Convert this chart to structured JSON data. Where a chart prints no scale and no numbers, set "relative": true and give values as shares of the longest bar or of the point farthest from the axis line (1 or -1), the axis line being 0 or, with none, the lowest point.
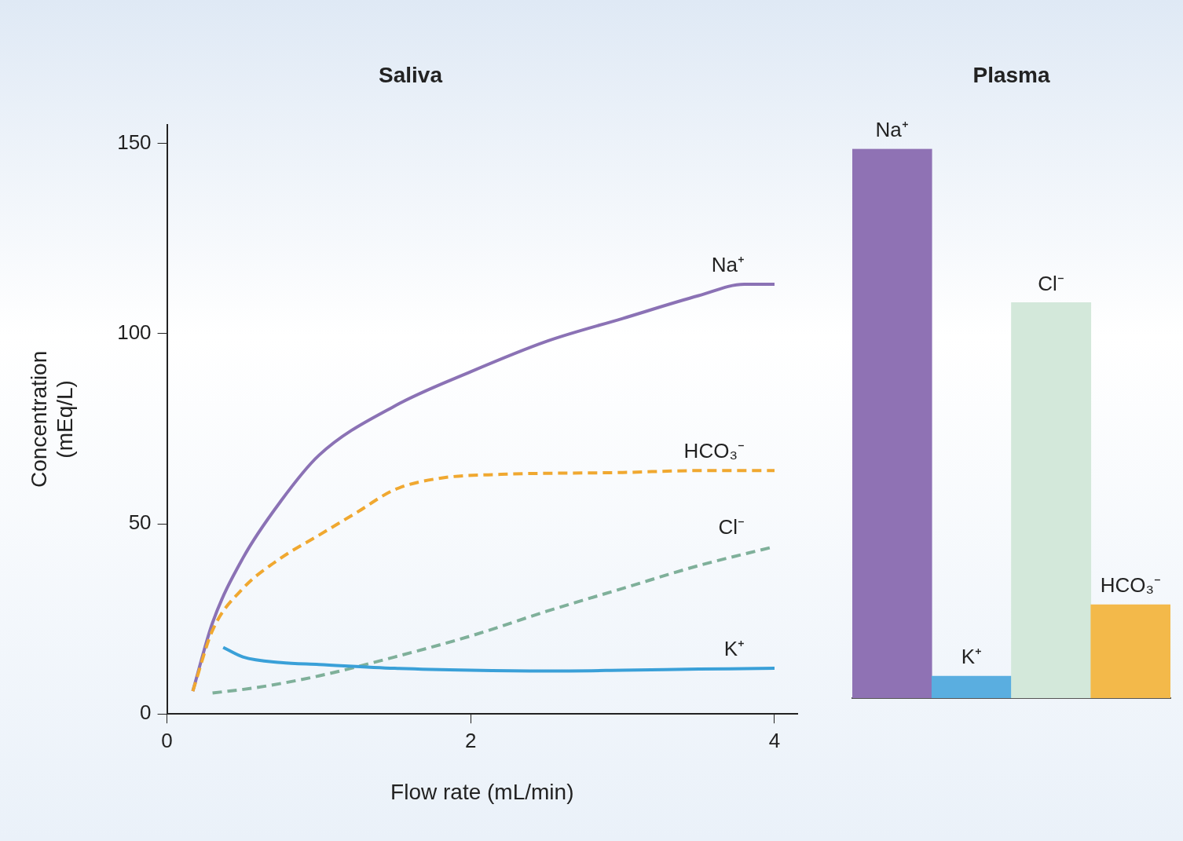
{
  "chart_data": [
    {
      "type": "line",
      "title": "Saliva",
      "xlabel": "Flow rate (mL/min)",
      "ylabel": "Concentration\n(mEq/L)",
      "xlim": [
        0,
        4.15
      ],
      "xticks": [
        0,
        2,
        4
      ],
      "ylim": [
        0,
        155
      ],
      "yticks": [
        0,
        50,
        100,
        150
      ],
      "grid": false,
      "legend": false,
      "marker": "none",
      "series": [
        {
          "name": "Na⁺",
          "color": "#8b72b5",
          "line_style": "solid",
          "x": [
            0.17,
            0.3,
            0.5,
            0.75,
            1,
            1.5,
            2,
            2.5,
            3,
            3.5,
            3.8,
            4
          ],
          "values": [
            6,
            24,
            41,
            56,
            68,
            81,
            90,
            98,
            104,
            110,
            113,
            113
          ]
        },
        {
          "name": "HCO₃⁻",
          "color": "#f0a830",
          "line_style": "dashed",
          "x": [
            0.17,
            0.3,
            0.5,
            0.75,
            1,
            1.25,
            1.5,
            1.8,
            2.2,
            3,
            3.5,
            4
          ],
          "values": [
            6,
            22,
            33,
            41,
            47,
            53,
            59,
            62,
            63,
            63.5,
            64,
            64
          ]
        },
        {
          "name": "Cl⁻",
          "color": "#7fb09a",
          "line_style": "dashed",
          "x": [
            0.3,
            0.6,
            1,
            1.5,
            2,
            2.5,
            3,
            3.5,
            4
          ],
          "values": [
            5.5,
            7,
            10,
            15,
            20.5,
            27,
            33,
            39,
            44
          ]
        },
        {
          "name": "K⁺",
          "color": "#3aa0d8",
          "line_style": "solid",
          "x": [
            0.37,
            0.5,
            0.75,
            1,
            1.5,
            2,
            2.5,
            3,
            3.5,
            4
          ],
          "values": [
            17.5,
            15,
            13.5,
            13,
            12,
            11.5,
            11.3,
            11.5,
            11.8,
            12
          ]
        }
      ]
    },
    {
      "type": "bar",
      "title": "Plasma",
      "categories": [
        "Na⁺",
        "K⁺",
        "Cl⁻",
        "HCO₃⁻"
      ],
      "values": [
        1,
        0.04,
        0.72,
        0.17
      ],
      "colors": [
        "#8f72b4",
        "#5aaee0",
        "#d3e8da",
        "#f3b94a"
      ],
      "relative": true,
      "grid": false,
      "legend": false
    }
  ]
}
